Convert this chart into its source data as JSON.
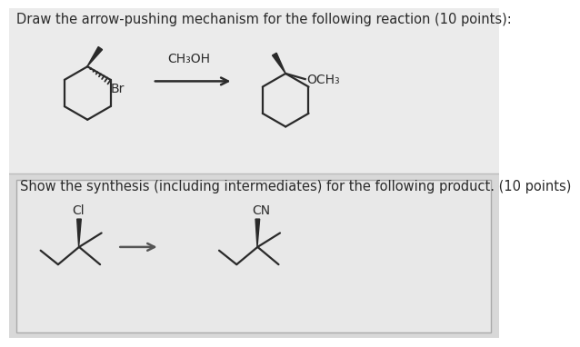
{
  "bg_top": "#ebebeb",
  "bg_bottom": "#e0e0e0",
  "box_bg": "#e8e8e8",
  "box_border": "#b0b0b0",
  "line_color": "#2a2a2a",
  "title1": "Draw the arrow-pushing mechanism for the following reaction (10 points):",
  "title2": "Show the synthesis (including intermediates) for the following product. (10 points)",
  "ch3oh": "CH₃OH",
  "br_label": "Br",
  "och3_label": "OCH₃",
  "cl_label": "Cl",
  "cn_label": "CN",
  "font_size_title": 10.5,
  "font_size_label": 10.0,
  "hex_r": 38
}
